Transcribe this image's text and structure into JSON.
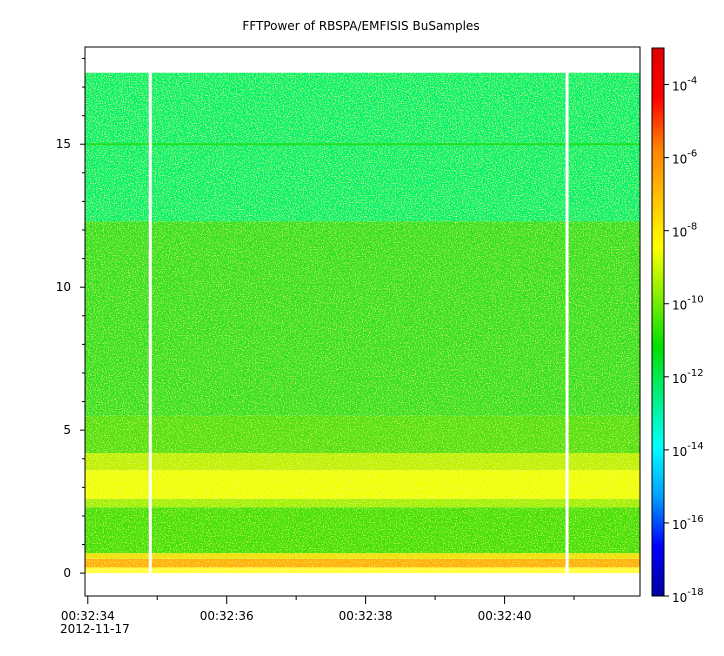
{
  "chart_data": {
    "type": "heatmap",
    "title": "FFTPower of RBSPA/EMFISIS  BuSamples",
    "xlabel": "",
    "ylabel": "",
    "x_range": [
      "00:32:33.96",
      "00:32:41.95"
    ],
    "x_ticks": [
      {
        "label": "00:32:34",
        "t": 0.0
      },
      {
        "label": "00:32:36",
        "t": 2.0
      },
      {
        "label": "00:32:38",
        "t": 4.0
      },
      {
        "label": "00:32:40",
        "t": 6.0
      }
    ],
    "x_date_label": "2012-11-17",
    "ylim": [
      -0.8,
      18.4
    ],
    "y_ticks": [
      0,
      5,
      10,
      15
    ],
    "data_y_range": [
      0,
      17.5
    ],
    "colorbar": {
      "scale": "log",
      "range": [
        1e-18,
        0.001
      ],
      "ticks": [
        {
          "base": "10",
          "exp": "-4",
          "value": 0.0001
        },
        {
          "base": "10",
          "exp": "-6",
          "value": 1e-06
        },
        {
          "base": "10",
          "exp": "-8",
          "value": 1e-08
        },
        {
          "base": "10",
          "exp": "-10",
          "value": 1e-10
        },
        {
          "base": "10",
          "exp": "-12",
          "value": 1e-12
        },
        {
          "base": "10",
          "exp": "-14",
          "value": 1e-14
        },
        {
          "base": "10",
          "exp": "-16",
          "value": 1e-16
        },
        {
          "base": "10",
          "exp": "-18",
          "value": 1e-18
        }
      ],
      "colors": [
        "#0000a0",
        "#0000ff",
        "#00a0ff",
        "#00ffff",
        "#00f080",
        "#00e000",
        "#80f000",
        "#ffff00",
        "#ffc000",
        "#ff8000",
        "#ff0000",
        "#e00000"
      ]
    },
    "bands": [
      {
        "y_from": 0.0,
        "y_to": 0.2,
        "power": "1e-8.3",
        "color": "#ffff40"
      },
      {
        "y_from": 0.2,
        "y_to": 0.5,
        "power": "1e-7",
        "color": "#ffb000"
      },
      {
        "y_from": 0.5,
        "y_to": 0.7,
        "power": "1e-8",
        "color": "#f0e000"
      },
      {
        "y_from": 0.7,
        "y_to": 2.3,
        "power": "1e-10",
        "color": "#40e000"
      },
      {
        "y_from": 2.3,
        "y_to": 2.6,
        "power": "1e-9",
        "color": "#a0f000"
      },
      {
        "y_from": 2.6,
        "y_to": 3.6,
        "power": "1e-8",
        "color": "#f0ff00"
      },
      {
        "y_from": 3.6,
        "y_to": 4.2,
        "power": "1e-9",
        "color": "#c0f000"
      },
      {
        "y_from": 4.2,
        "y_to": 5.5,
        "power": "1e-10",
        "color": "#50e010"
      },
      {
        "y_from": 5.5,
        "y_to": 12.3,
        "power": "1e-10.5",
        "color": "#30e020"
      },
      {
        "y_from": 12.3,
        "y_to": 17.5,
        "power": "1e-12",
        "color": "#00f070"
      }
    ],
    "line_features": [
      {
        "y": 15.0,
        "power": "1e-10",
        "color": "#20e020"
      }
    ],
    "data_gaps": [
      {
        "t": 0.9
      },
      {
        "t": 6.9
      }
    ]
  }
}
